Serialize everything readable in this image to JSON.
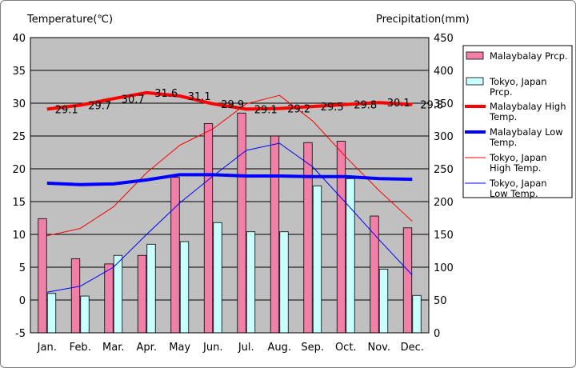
{
  "chart_data": {
    "type": "bar+line",
    "left_axis_label": "Temperature(℃)",
    "right_axis_label": "Precipitation(mm)",
    "left_ylim": [
      -5,
      40
    ],
    "left_ticks": [
      "40",
      "35",
      "30",
      "25",
      "20",
      "15",
      "10",
      "5",
      "0",
      "-5"
    ],
    "right_ylim": [
      0,
      450
    ],
    "right_ticks": [
      "450",
      "400",
      "350",
      "300",
      "250",
      "200",
      "150",
      "100",
      "50",
      "0"
    ],
    "categories": [
      "Jan.",
      "Feb.",
      "Mar.",
      "Apr.",
      "May",
      "Jun.",
      "Jul.",
      "Aug.",
      "Sep.",
      "Oct.",
      "Nov.",
      "Dec."
    ],
    "grid": true,
    "legend_position": "right",
    "bar_series": [
      {
        "name": "Malaybalay Prcp.",
        "axis": "right",
        "color": "#f080a8",
        "values": [
          174,
          113,
          105,
          118,
          237,
          319,
          335,
          300,
          290,
          292,
          178,
          160
        ]
      },
      {
        "name": "Tokyo, Japan Prcp.",
        "axis": "right",
        "color": "#c8ffff",
        "values": [
          60,
          56,
          118,
          135,
          139,
          168,
          154,
          154,
          224,
          235,
          97,
          57
        ]
      }
    ],
    "line_series": [
      {
        "name": "Malaybalay High Temp.",
        "axis": "left",
        "color": "#ff0000",
        "width": 4,
        "values": [
          29.1,
          29.7,
          30.7,
          31.6,
          31.1,
          29.9,
          29.1,
          29.2,
          29.5,
          29.8,
          30.1,
          29.8
        ],
        "labels": [
          "29.1",
          "29.7",
          "30.7",
          "31.6",
          "31.1",
          "29.9",
          "29.1",
          "29.2",
          "29.5",
          "29.8",
          "30.1",
          "29.8"
        ]
      },
      {
        "name": "Malaybalay Low Temp.",
        "axis": "left",
        "color": "#0000ff",
        "width": 4,
        "values": [
          17.8,
          17.6,
          17.7,
          18.3,
          19.1,
          19.1,
          18.9,
          18.9,
          18.8,
          18.8,
          18.5,
          18.4
        ]
      },
      {
        "name": "Tokyo, Japan High Temp.",
        "axis": "left",
        "color": "#ff0000",
        "width": 1,
        "values": [
          9.8,
          10.9,
          14.2,
          19.4,
          23.6,
          26.1,
          29.9,
          31.2,
          27.3,
          21.8,
          16.7,
          12.0
        ]
      },
      {
        "name": "Tokyo, Japan Low Temp.",
        "axis": "left",
        "color": "#0000ff",
        "width": 1,
        "values": [
          1.2,
          2.1,
          5.0,
          10.0,
          14.8,
          18.9,
          22.8,
          23.9,
          20.3,
          14.8,
          9.2,
          3.8
        ]
      }
    ],
    "legend": [
      "Malaybalay Prcp.",
      "Tokyo, Japan Prcp.",
      "Malaybalay High Temp.",
      "Malaybalay Low Temp.",
      "Tokyo, Japan High Temp.",
      "Tokyo, Japan Low Temp."
    ],
    "colors": {
      "plot_bg": "#c0c0c0",
      "grid": "#000000"
    }
  }
}
